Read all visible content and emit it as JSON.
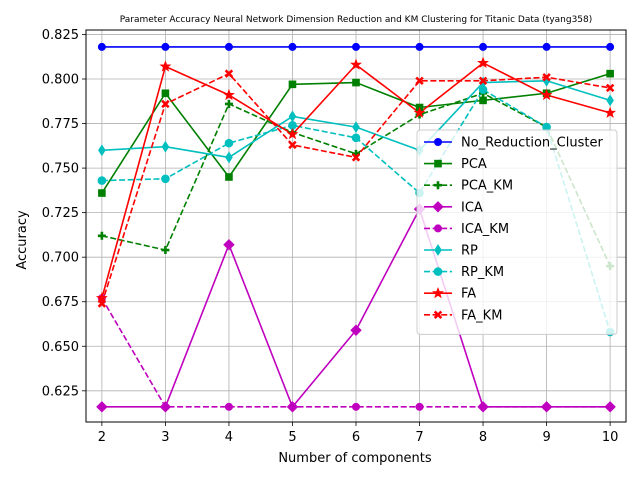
{
  "chart_data": {
    "type": "line",
    "title": "Parameter Accuracy Neural Network Dimension Reduction and KM Clustering for Titanic Data (tyang358)",
    "xlabel": "Number of components",
    "ylabel": "Accuracy",
    "x": [
      2,
      3,
      4,
      5,
      6,
      7,
      8,
      9,
      10
    ],
    "xlim": [
      1.75,
      10.25
    ],
    "ylim": [
      0.6075,
      0.8275
    ],
    "xticks": [
      2,
      3,
      4,
      5,
      6,
      7,
      8,
      9,
      10
    ],
    "yticks": [
      0.625,
      0.65,
      0.675,
      0.7,
      0.725,
      0.75,
      0.775,
      0.8,
      0.825
    ],
    "grid": true,
    "legend_position": "right",
    "series": [
      {
        "name": "No_Reduction_Cluster",
        "color": "#0000ff",
        "linestyle": "solid",
        "marker": "circle",
        "values": [
          0.818,
          0.818,
          0.818,
          0.818,
          0.818,
          0.818,
          0.818,
          0.818,
          0.818
        ]
      },
      {
        "name": "PCA",
        "color": "#008000",
        "linestyle": "solid",
        "marker": "square",
        "values": [
          0.736,
          0.792,
          0.745,
          0.797,
          0.798,
          0.784,
          0.788,
          0.792,
          0.803
        ]
      },
      {
        "name": "PCA_KM",
        "color": "#008000",
        "linestyle": "dashed",
        "marker": "plus",
        "values": [
          0.712,
          0.704,
          0.786,
          0.77,
          0.758,
          0.78,
          0.792,
          0.773,
          0.695
        ]
      },
      {
        "name": "ICA",
        "color": "#bf00bf",
        "linestyle": "solid",
        "marker": "diamond",
        "values": [
          0.616,
          0.616,
          0.707,
          0.616,
          0.659,
          0.727,
          0.616,
          0.616,
          0.616
        ]
      },
      {
        "name": "ICA_KM",
        "color": "#bf00bf",
        "linestyle": "dashed",
        "marker": "circle",
        "values": [
          0.677,
          0.616,
          0.616,
          0.616,
          0.616,
          0.616,
          0.616,
          0.616,
          0.616
        ]
      },
      {
        "name": "RP",
        "color": "#00bfbf",
        "linestyle": "solid",
        "marker": "thin_diamond",
        "values": [
          0.76,
          0.762,
          0.756,
          0.779,
          0.773,
          0.76,
          0.798,
          0.799,
          0.788
        ]
      },
      {
        "name": "RP_KM",
        "color": "#00bfbf",
        "linestyle": "dashed",
        "marker": "octagon",
        "values": [
          0.743,
          0.744,
          0.764,
          0.774,
          0.767,
          0.736,
          0.794,
          0.773,
          0.658
        ]
      },
      {
        "name": "FA",
        "color": "#ff0000",
        "linestyle": "solid",
        "marker": "star",
        "values": [
          0.677,
          0.807,
          0.791,
          0.769,
          0.808,
          0.781,
          0.809,
          0.791,
          0.781
        ]
      },
      {
        "name": "FA_KM",
        "color": "#ff0000",
        "linestyle": "dashed",
        "marker": "x",
        "values": [
          0.674,
          0.786,
          0.803,
          0.763,
          0.756,
          0.799,
          0.799,
          0.801,
          0.795
        ]
      }
    ]
  }
}
